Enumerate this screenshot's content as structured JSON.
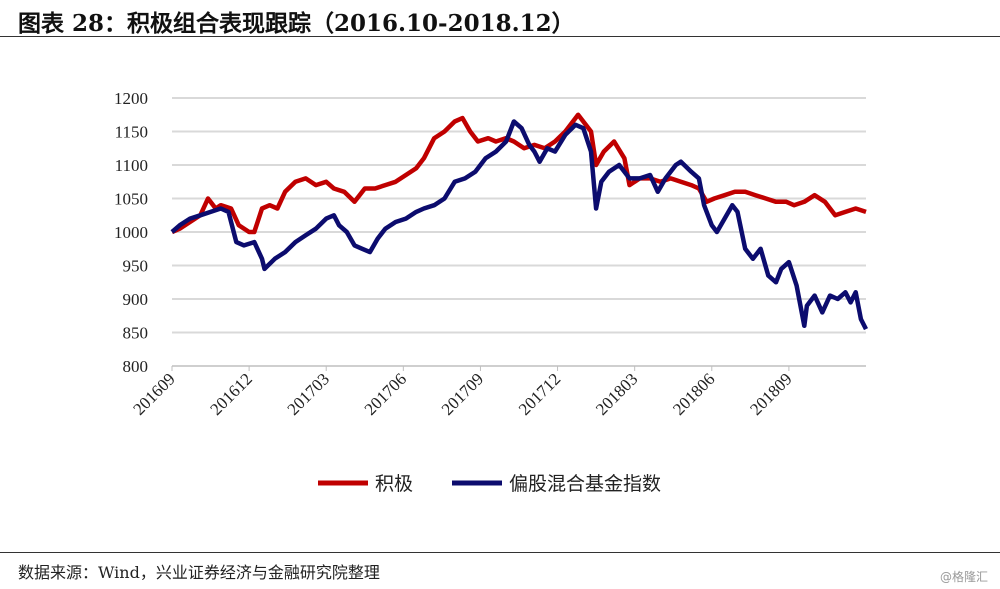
{
  "title": "图表 28：积极组合表现跟踪（2016.10-2018.12）",
  "source": "数据来源：Wind，兴业证券经济与金融研究院整理",
  "watermark": "@格隆汇",
  "chart_data": {
    "type": "line",
    "title": "积极组合表现跟踪（2016.10-2018.12）",
    "x_unit": "months since 201609",
    "x_ticks": [
      "201609",
      "201612",
      "201703",
      "201706",
      "201709",
      "201712",
      "201803",
      "201806",
      "201809"
    ],
    "x_range": [
      0,
      27
    ],
    "ylim": [
      800,
      1200
    ],
    "y_ticks": [
      800,
      850,
      900,
      950,
      1000,
      1050,
      1100,
      1150,
      1200
    ],
    "grid": true,
    "legend_position": "bottom",
    "series": [
      {
        "name": "积极",
        "color": "#C00000",
        "points": [
          [
            0,
            1000
          ],
          [
            0.3,
            1005
          ],
          [
            0.7,
            1015
          ],
          [
            1.1,
            1025
          ],
          [
            1.4,
            1050
          ],
          [
            1.7,
            1035
          ],
          [
            1.9,
            1040
          ],
          [
            2.3,
            1035
          ],
          [
            2.6,
            1010
          ],
          [
            3.0,
            1000
          ],
          [
            3.2,
            1000
          ],
          [
            3.5,
            1035
          ],
          [
            3.8,
            1040
          ],
          [
            4.1,
            1035
          ],
          [
            4.4,
            1060
          ],
          [
            4.8,
            1075
          ],
          [
            5.2,
            1080
          ],
          [
            5.6,
            1070
          ],
          [
            6.0,
            1075
          ],
          [
            6.3,
            1065
          ],
          [
            6.7,
            1060
          ],
          [
            7.1,
            1045
          ],
          [
            7.5,
            1065
          ],
          [
            7.9,
            1065
          ],
          [
            8.3,
            1070
          ],
          [
            8.7,
            1075
          ],
          [
            9.1,
            1085
          ],
          [
            9.5,
            1095
          ],
          [
            9.8,
            1110
          ],
          [
            10.2,
            1140
          ],
          [
            10.6,
            1150
          ],
          [
            11.0,
            1165
          ],
          [
            11.3,
            1170
          ],
          [
            11.6,
            1150
          ],
          [
            11.9,
            1135
          ],
          [
            12.3,
            1140
          ],
          [
            12.6,
            1135
          ],
          [
            13.0,
            1140
          ],
          [
            13.3,
            1135
          ],
          [
            13.7,
            1125
          ],
          [
            14.1,
            1130
          ],
          [
            14.5,
            1125
          ],
          [
            14.9,
            1135
          ],
          [
            15.3,
            1150
          ],
          [
            15.8,
            1175
          ],
          [
            16.1,
            1160
          ],
          [
            16.3,
            1150
          ],
          [
            16.5,
            1100
          ],
          [
            16.8,
            1120
          ],
          [
            17.2,
            1135
          ],
          [
            17.6,
            1110
          ],
          [
            17.8,
            1070
          ],
          [
            18.2,
            1080
          ],
          [
            18.6,
            1080
          ],
          [
            19.0,
            1075
          ],
          [
            19.4,
            1080
          ],
          [
            19.8,
            1075
          ],
          [
            20.2,
            1070
          ],
          [
            20.5,
            1065
          ],
          [
            20.8,
            1045
          ],
          [
            21.1,
            1050
          ],
          [
            21.5,
            1055
          ],
          [
            21.9,
            1060
          ],
          [
            22.3,
            1060
          ],
          [
            22.7,
            1055
          ],
          [
            23.1,
            1050
          ],
          [
            23.5,
            1045
          ],
          [
            23.9,
            1045
          ],
          [
            24.2,
            1040
          ],
          [
            24.6,
            1045
          ],
          [
            25.0,
            1055
          ],
          [
            25.4,
            1045
          ],
          [
            25.8,
            1025
          ],
          [
            26.2,
            1030
          ],
          [
            26.6,
            1035
          ],
          [
            27.0,
            1030
          ]
        ]
      },
      {
        "name": "偏股混合基金指数",
        "color": "#0C0C6E",
        "points": [
          [
            0,
            1000
          ],
          [
            0.3,
            1010
          ],
          [
            0.7,
            1020
          ],
          [
            1.1,
            1025
          ],
          [
            1.5,
            1030
          ],
          [
            1.9,
            1035
          ],
          [
            2.2,
            1030
          ],
          [
            2.5,
            985
          ],
          [
            2.8,
            980
          ],
          [
            3.2,
            985
          ],
          [
            3.5,
            960
          ],
          [
            3.6,
            945
          ],
          [
            4.0,
            960
          ],
          [
            4.4,
            970
          ],
          [
            4.8,
            985
          ],
          [
            5.2,
            995
          ],
          [
            5.6,
            1005
          ],
          [
            6.0,
            1020
          ],
          [
            6.3,
            1025
          ],
          [
            6.5,
            1010
          ],
          [
            6.8,
            1000
          ],
          [
            7.1,
            980
          ],
          [
            7.4,
            975
          ],
          [
            7.7,
            970
          ],
          [
            8.0,
            990
          ],
          [
            8.3,
            1005
          ],
          [
            8.7,
            1015
          ],
          [
            9.1,
            1020
          ],
          [
            9.5,
            1030
          ],
          [
            9.8,
            1035
          ],
          [
            10.2,
            1040
          ],
          [
            10.6,
            1050
          ],
          [
            11.0,
            1075
          ],
          [
            11.4,
            1080
          ],
          [
            11.8,
            1090
          ],
          [
            12.2,
            1110
          ],
          [
            12.6,
            1120
          ],
          [
            13.0,
            1135
          ],
          [
            13.3,
            1165
          ],
          [
            13.6,
            1155
          ],
          [
            13.9,
            1130
          ],
          [
            14.1,
            1120
          ],
          [
            14.3,
            1105
          ],
          [
            14.6,
            1125
          ],
          [
            14.9,
            1120
          ],
          [
            15.3,
            1145
          ],
          [
            15.7,
            1160
          ],
          [
            16.0,
            1155
          ],
          [
            16.3,
            1120
          ],
          [
            16.5,
            1035
          ],
          [
            16.7,
            1075
          ],
          [
            17.0,
            1090
          ],
          [
            17.4,
            1100
          ],
          [
            17.8,
            1080
          ],
          [
            18.2,
            1080
          ],
          [
            18.6,
            1085
          ],
          [
            18.9,
            1060
          ],
          [
            19.2,
            1080
          ],
          [
            19.6,
            1100
          ],
          [
            19.8,
            1105
          ],
          [
            20.2,
            1090
          ],
          [
            20.5,
            1080
          ],
          [
            20.7,
            1040
          ],
          [
            21.0,
            1010
          ],
          [
            21.2,
            1000
          ],
          [
            21.5,
            1020
          ],
          [
            21.8,
            1040
          ],
          [
            22.0,
            1030
          ],
          [
            22.3,
            975
          ],
          [
            22.6,
            960
          ],
          [
            22.9,
            975
          ],
          [
            23.2,
            935
          ],
          [
            23.5,
            925
          ],
          [
            23.7,
            945
          ],
          [
            24.0,
            955
          ],
          [
            24.3,
            920
          ],
          [
            24.6,
            860
          ],
          [
            24.7,
            890
          ],
          [
            25.0,
            905
          ],
          [
            25.3,
            880
          ],
          [
            25.6,
            905
          ],
          [
            25.9,
            900
          ],
          [
            26.2,
            910
          ],
          [
            26.4,
            895
          ],
          [
            26.6,
            910
          ],
          [
            26.8,
            870
          ],
          [
            27.0,
            855
          ]
        ]
      }
    ]
  }
}
